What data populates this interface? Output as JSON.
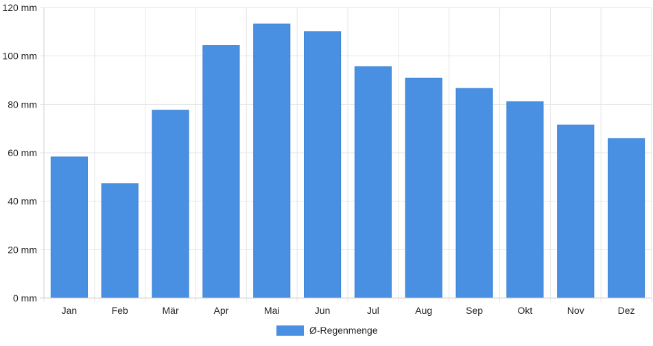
{
  "chart_data": {
    "type": "bar",
    "title": "",
    "xlabel": "",
    "ylabel": "",
    "unit": "mm",
    "categories": [
      "Jan",
      "Feb",
      "Mär",
      "Apr",
      "Mai",
      "Jun",
      "Jul",
      "Aug",
      "Sep",
      "Okt",
      "Nov",
      "Dez"
    ],
    "series": [
      {
        "name": "Ø-Regenmenge",
        "color": "#4a90e2",
        "values": [
          58.3,
          47.3,
          77.6,
          104.3,
          113.2,
          110.1,
          95.6,
          90.8,
          86.6,
          81.1,
          71.5,
          65.9
        ]
      }
    ],
    "ylim": [
      0,
      120
    ],
    "yticks": [
      0,
      20,
      40,
      60,
      80,
      100,
      120
    ],
    "ytick_labels": [
      "0 mm",
      "20 mm",
      "40 mm",
      "60 mm",
      "80 mm",
      "100 mm",
      "120 mm"
    ],
    "grid": true,
    "legend_position": "bottom-center"
  }
}
